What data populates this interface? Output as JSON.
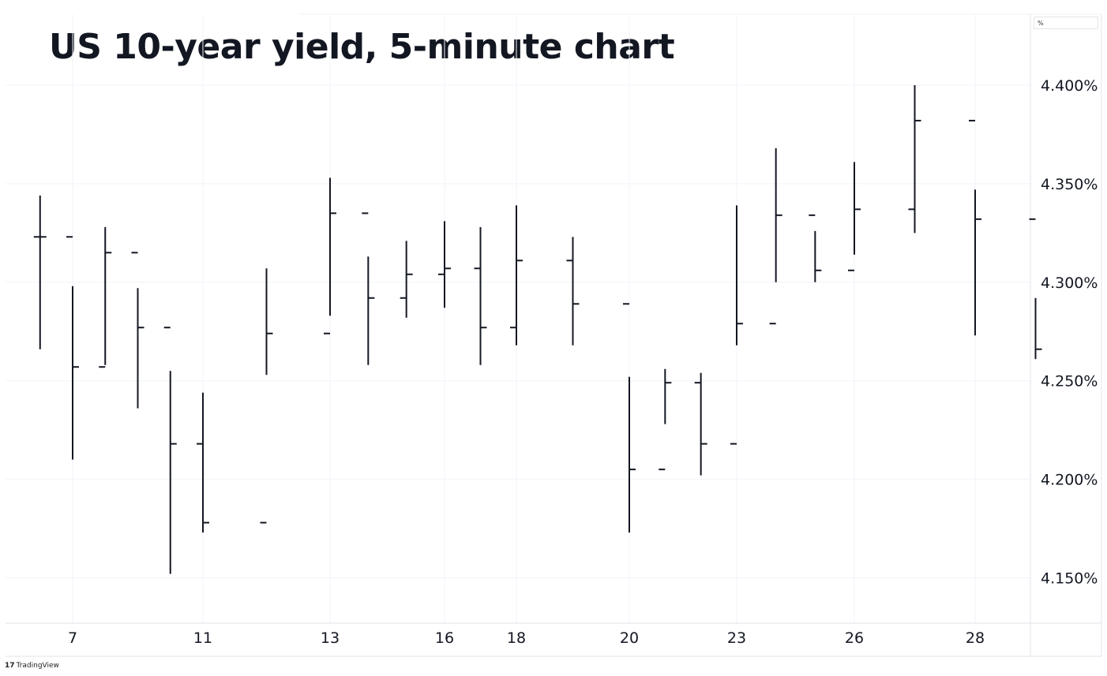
{
  "chart_data": {
    "type": "bar",
    "subtype": "ohlc",
    "title": "US 10-year yield, 5-minute chart",
    "unit": "%",
    "y_tick_labels": [
      "4.400%",
      "4.350%",
      "4.300%",
      "4.250%",
      "4.200%",
      "4.150%"
    ],
    "y_ticks": [
      4.4,
      4.35,
      4.3,
      4.25,
      4.2,
      4.15
    ],
    "ylim": [
      4.127,
      4.436
    ],
    "x_tick_labels": [
      "7",
      "11",
      "13",
      "16",
      "18",
      "20",
      "23",
      "26",
      "28"
    ],
    "x_ticks": [
      7,
      11,
      13,
      16,
      18,
      20,
      23,
      26,
      28
    ],
    "grid": true,
    "legend": "none",
    "price_axis_position": "right",
    "bar_color": "#131722",
    "series": [
      {
        "x": [
          6,
          7,
          8,
          9,
          10,
          11,
          12,
          13,
          14,
          15,
          16,
          17,
          18,
          19,
          20,
          21,
          22,
          23,
          24,
          25,
          26,
          27,
          28,
          29
        ],
        "values": [
          4.323,
          4.257,
          4.315,
          4.277,
          4.218,
          4.178,
          4.274,
          4.335,
          4.292,
          4.304,
          4.307,
          4.277,
          4.311,
          4.289,
          4.205,
          4.249,
          4.218,
          4.279,
          4.334,
          4.306,
          4.337,
          4.382,
          4.332,
          4.266
        ],
        "high": [
          4.344,
          4.298,
          4.328,
          4.297,
          4.255,
          4.244,
          4.307,
          4.353,
          4.313,
          4.321,
          4.331,
          4.328,
          4.339,
          4.323,
          4.252,
          4.256,
          4.254,
          4.339,
          4.368,
          4.326,
          4.361,
          4.4,
          4.347,
          4.292
        ],
        "low": [
          4.266,
          4.21,
          4.258,
          4.236,
          4.152,
          4.173,
          4.253,
          4.283,
          4.258,
          4.282,
          4.287,
          4.258,
          4.268,
          4.268,
          4.173,
          4.228,
          4.202,
          4.268,
          4.3,
          4.3,
          4.314,
          4.325,
          4.273,
          4.261
        ]
      }
    ]
  },
  "branding": {
    "watermark": "TradingView",
    "logo_glyph": "17"
  }
}
